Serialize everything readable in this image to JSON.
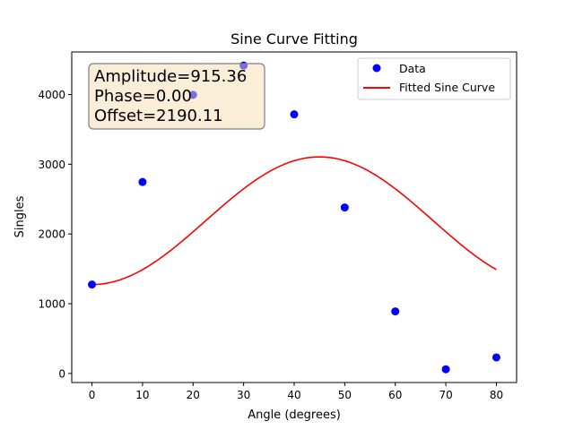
{
  "chart_data": {
    "type": "scatter",
    "title": "Sine Curve Fitting",
    "xlabel": "Angle (degrees)",
    "ylabel": "Singles",
    "xlim": [
      -4,
      84
    ],
    "ylim": [
      -130,
      4610
    ],
    "xticks": [
      0,
      10,
      20,
      30,
      40,
      50,
      60,
      70,
      80
    ],
    "yticks": [
      0,
      1000,
      2000,
      3000,
      4000
    ],
    "grid": false,
    "legend_position": "top-right",
    "colors": {
      "data": "#0000ff",
      "fit": "#ff0000",
      "annotation_bg": "#f5deb3",
      "annotation_border": "#7f7f7f"
    },
    "series": [
      {
        "name": "Data",
        "kind": "scatter",
        "x": [
          0,
          10,
          20,
          30,
          40,
          50,
          60,
          70,
          80
        ],
        "y": [
          1275,
          2745,
          3995,
          4415,
          3715,
          2380,
          890,
          60,
          230
        ]
      },
      {
        "name": "Fitted Sine Curve",
        "kind": "line",
        "function": "sine",
        "amplitude": 915.36,
        "phase": 0.0,
        "offset": 2190.11,
        "x_range": [
          0,
          80
        ]
      }
    ],
    "annotation": {
      "lines": [
        "Amplitude=915.36",
        "Phase=0.00",
        "Offset=2190.11"
      ]
    }
  }
}
